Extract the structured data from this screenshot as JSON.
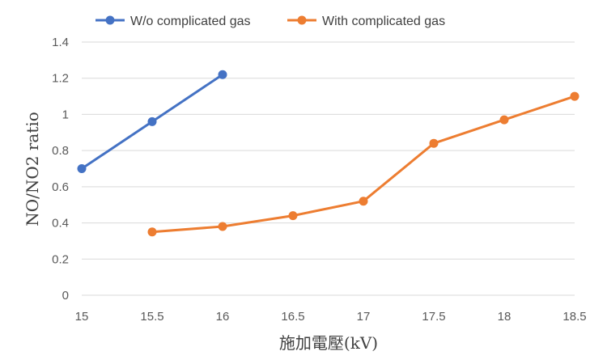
{
  "chart_data": {
    "type": "line",
    "title": "",
    "xlabel": "施加電壓(kV)",
    "ylabel": "NO/NO2 ratio",
    "xlim": [
      15,
      18.5
    ],
    "ylim": [
      0,
      1.4
    ],
    "x_ticks": [
      "15",
      "15.5",
      "16",
      "16.5",
      "17",
      "17.5",
      "18",
      "18.5"
    ],
    "y_ticks": [
      "0",
      "0.2",
      "0.4",
      "0.6",
      "0.8",
      "1",
      "1.2",
      "1.4"
    ],
    "grid": "horizontal",
    "legend_position": "top",
    "series": [
      {
        "name": "W/o complicated gas",
        "color": "#4472C4",
        "x": [
          15,
          15.5,
          16
        ],
        "y": [
          0.7,
          0.96,
          1.22
        ]
      },
      {
        "name": "With complicated gas",
        "color": "#ED7D31",
        "x": [
          15.5,
          16,
          16.5,
          17,
          17.5,
          18,
          18.5
        ],
        "y": [
          0.35,
          0.38,
          0.44,
          0.52,
          0.84,
          0.97,
          1.1
        ]
      }
    ]
  }
}
